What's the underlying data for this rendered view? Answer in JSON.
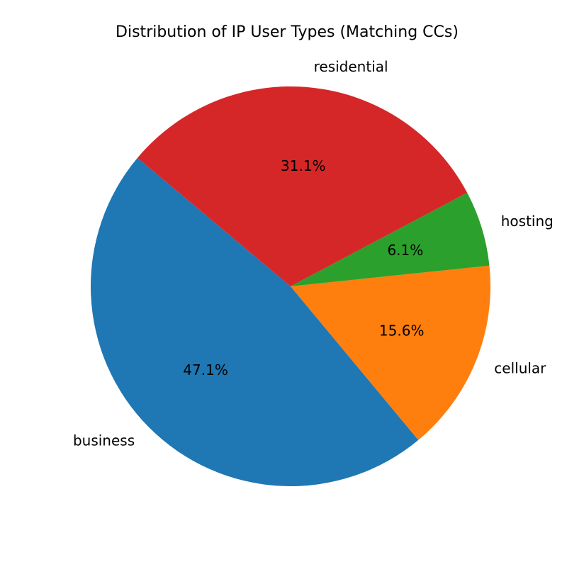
{
  "chart_data": {
    "type": "pie",
    "title": "Distribution of IP User Types (Matching CCs)",
    "categories": [
      "business",
      "cellular",
      "hosting",
      "residential"
    ],
    "values": [
      47.1,
      15.6,
      6.1,
      31.1
    ],
    "value_labels": [
      "47.1%",
      "15.6%",
      "6.1%",
      "31.1%"
    ],
    "colors": [
      "#1f77b4",
      "#ff7f0e",
      "#2ca02c",
      "#d62728"
    ]
  }
}
